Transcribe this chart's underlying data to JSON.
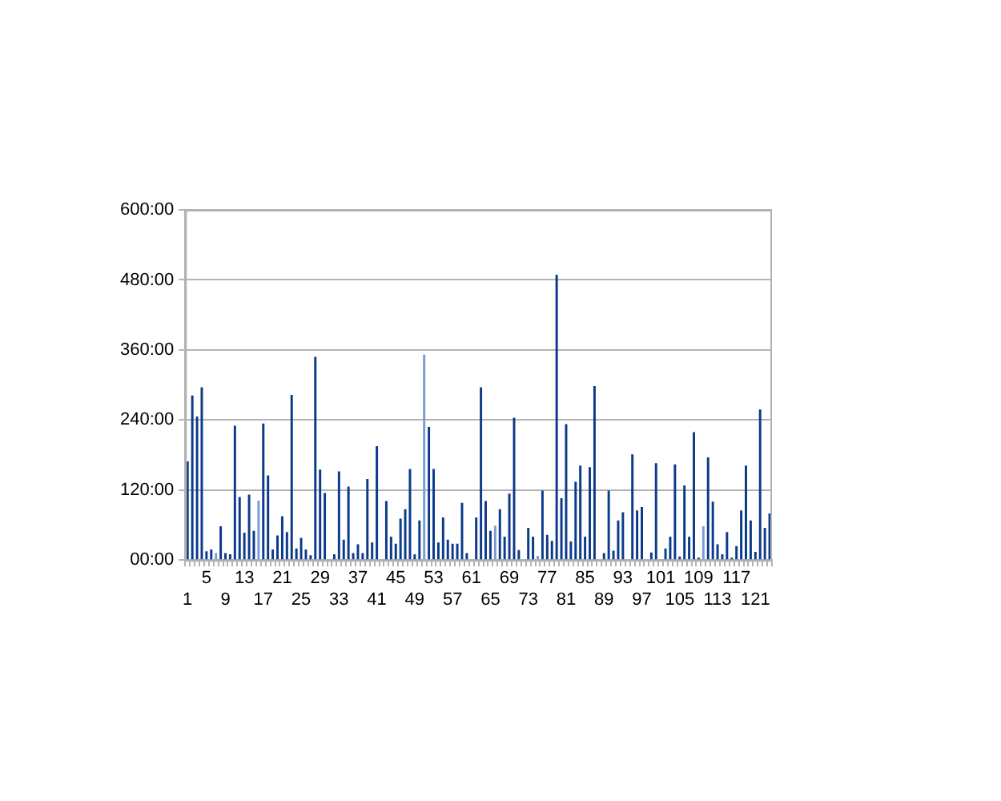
{
  "chart_data": {
    "type": "bar",
    "categories": [
      "1",
      null,
      null,
      null,
      "5",
      null,
      null,
      null,
      "9",
      null,
      null,
      null,
      "13",
      null,
      null,
      null,
      "17",
      null,
      null,
      null,
      "21",
      null,
      null,
      null,
      "25",
      null,
      null,
      null,
      "29",
      null,
      null,
      null,
      "33",
      null,
      null,
      null,
      "37",
      null,
      null,
      null,
      "41",
      null,
      null,
      null,
      "45",
      null,
      null,
      null,
      "49",
      null,
      null,
      null,
      "53",
      null,
      null,
      null,
      "57",
      null,
      null,
      null,
      "61",
      null,
      null,
      null,
      "65",
      null,
      null,
      null,
      "69",
      null,
      null,
      null,
      "73",
      null,
      null,
      null,
      "77",
      null,
      null,
      null,
      "81",
      null,
      null,
      null,
      "85",
      null,
      null,
      null,
      "89",
      null,
      null,
      null,
      "93",
      null,
      null,
      null,
      "97",
      null,
      null,
      null,
      "101",
      null,
      null,
      null,
      "105",
      null,
      null,
      null,
      "109",
      null,
      null,
      null,
      "113",
      null,
      null,
      null,
      "117",
      null,
      null,
      null,
      "121",
      null,
      null,
      null
    ],
    "values": [
      169,
      282,
      246,
      296,
      15,
      18,
      12,
      58,
      12,
      10,
      230,
      108,
      47,
      112,
      50,
      102,
      234,
      145,
      18,
      42,
      75,
      48,
      283,
      20,
      38,
      18,
      8,
      348,
      155,
      115,
      null,
      10,
      152,
      35,
      126,
      12,
      27,
      12,
      139,
      30,
      195,
      0,
      101,
      40,
      28,
      71,
      87,
      156,
      10,
      68,
      352,
      228,
      156,
      30,
      73,
      35,
      28,
      28,
      98,
      12,
      0,
      73,
      296,
      101,
      50,
      59,
      87,
      40,
      114,
      244,
      17,
      0,
      55,
      40,
      7,
      119,
      43,
      33,
      489,
      106,
      233,
      32,
      134,
      162,
      40,
      159,
      298,
      0,
      12,
      119,
      16,
      68,
      82,
      0,
      181,
      85,
      91,
      null,
      13,
      166,
      0,
      20,
      40,
      164,
      6,
      128,
      40,
      219,
      4,
      58,
      176,
      100,
      27,
      10,
      48,
      4,
      24,
      85,
      162,
      68,
      14,
      258,
      55,
      80
    ],
    "colors": [
      "#0b3a8a",
      "#0b3a8a",
      "#0b3a8a",
      "#0b3a8a",
      "#0b3a8a",
      "#0b3a8a",
      "#7a9cd0",
      "#0b3a8a",
      "#0b3a8a",
      "#0b3a8a",
      "#0b3a8a",
      "#0b3a8a",
      "#0b3a8a",
      "#0b3a8a",
      "#0b3a8a",
      "#7a9cd0",
      "#0b3a8a",
      "#0b3a8a",
      "#0b3a8a",
      "#0b3a8a",
      "#0b3a8a",
      "#0b3a8a",
      "#0b3a8a",
      "#0b3a8a",
      "#0b3a8a",
      "#0b3a8a",
      "#0b3a8a",
      "#0b3a8a",
      "#0b3a8a",
      "#0b3a8a",
      "#0b3a8a",
      "#0b3a8a",
      "#0b3a8a",
      "#0b3a8a",
      "#0b3a8a",
      "#0b3a8a",
      "#0b3a8a",
      "#0b3a8a",
      "#0b3a8a",
      "#0b3a8a",
      "#0b3a8a",
      "#0b3a8a",
      "#0b3a8a",
      "#0b3a8a",
      "#0b3a8a",
      "#0b3a8a",
      "#0b3a8a",
      "#0b3a8a",
      "#0b3a8a",
      "#0b3a8a",
      "#7a9cd0",
      "#0b3a8a",
      "#0b3a8a",
      "#0b3a8a",
      "#0b3a8a",
      "#0b3a8a",
      "#0b3a8a",
      "#0b3a8a",
      "#0b3a8a",
      "#0b3a8a",
      "#0b3a8a",
      "#0b3a8a",
      "#0b3a8a",
      "#0b3a8a",
      "#0b3a8a",
      "#7a9cd0",
      "#0b3a8a",
      "#0b3a8a",
      "#0b3a8a",
      "#0b3a8a",
      "#0b3a8a",
      "#0b3a8a",
      "#0b3a8a",
      "#0b3a8a",
      "#7a9cd0",
      "#0b3a8a",
      "#0b3a8a",
      "#0b3a8a",
      "#0b3a8a",
      "#0b3a8a",
      "#0b3a8a",
      "#0b3a8a",
      "#0b3a8a",
      "#0b3a8a",
      "#0b3a8a",
      "#0b3a8a",
      "#0b3a8a",
      "#0b3a8a",
      "#0b3a8a",
      "#0b3a8a",
      "#0b3a8a",
      "#0b3a8a",
      "#0b3a8a",
      "#0b3a8a",
      "#0b3a8a",
      "#0b3a8a",
      "#0b3a8a",
      "#0b3a8a",
      "#0b3a8a",
      "#0b3a8a",
      "#0b3a8a",
      "#0b3a8a",
      "#0b3a8a",
      "#0b3a8a",
      "#0b3a8a",
      "#0b3a8a",
      "#0b3a8a",
      "#0b3a8a",
      "#0b3a8a",
      "#7a9cd0",
      "#0b3a8a",
      "#0b3a8a",
      "#0b3a8a",
      "#0b3a8a",
      "#0b3a8a",
      "#0b3a8a",
      "#0b3a8a",
      "#0b3a8a",
      "#0b3a8a",
      "#0b3a8a",
      "#0b3a8a",
      "#0b3a8a",
      "#0b3a8a",
      "#0b3a8a"
    ],
    "ylim": [
      0,
      600
    ],
    "yticks": [
      {
        "value": 0,
        "label": "00:00"
      },
      {
        "value": 120,
        "label": "120:00"
      },
      {
        "value": 240,
        "label": "240:00"
      },
      {
        "value": 360,
        "label": "360:00"
      },
      {
        "value": 480,
        "label": "480:00"
      },
      {
        "value": 600,
        "label": "600:00"
      }
    ],
    "grid": "y",
    "legend": false
  }
}
